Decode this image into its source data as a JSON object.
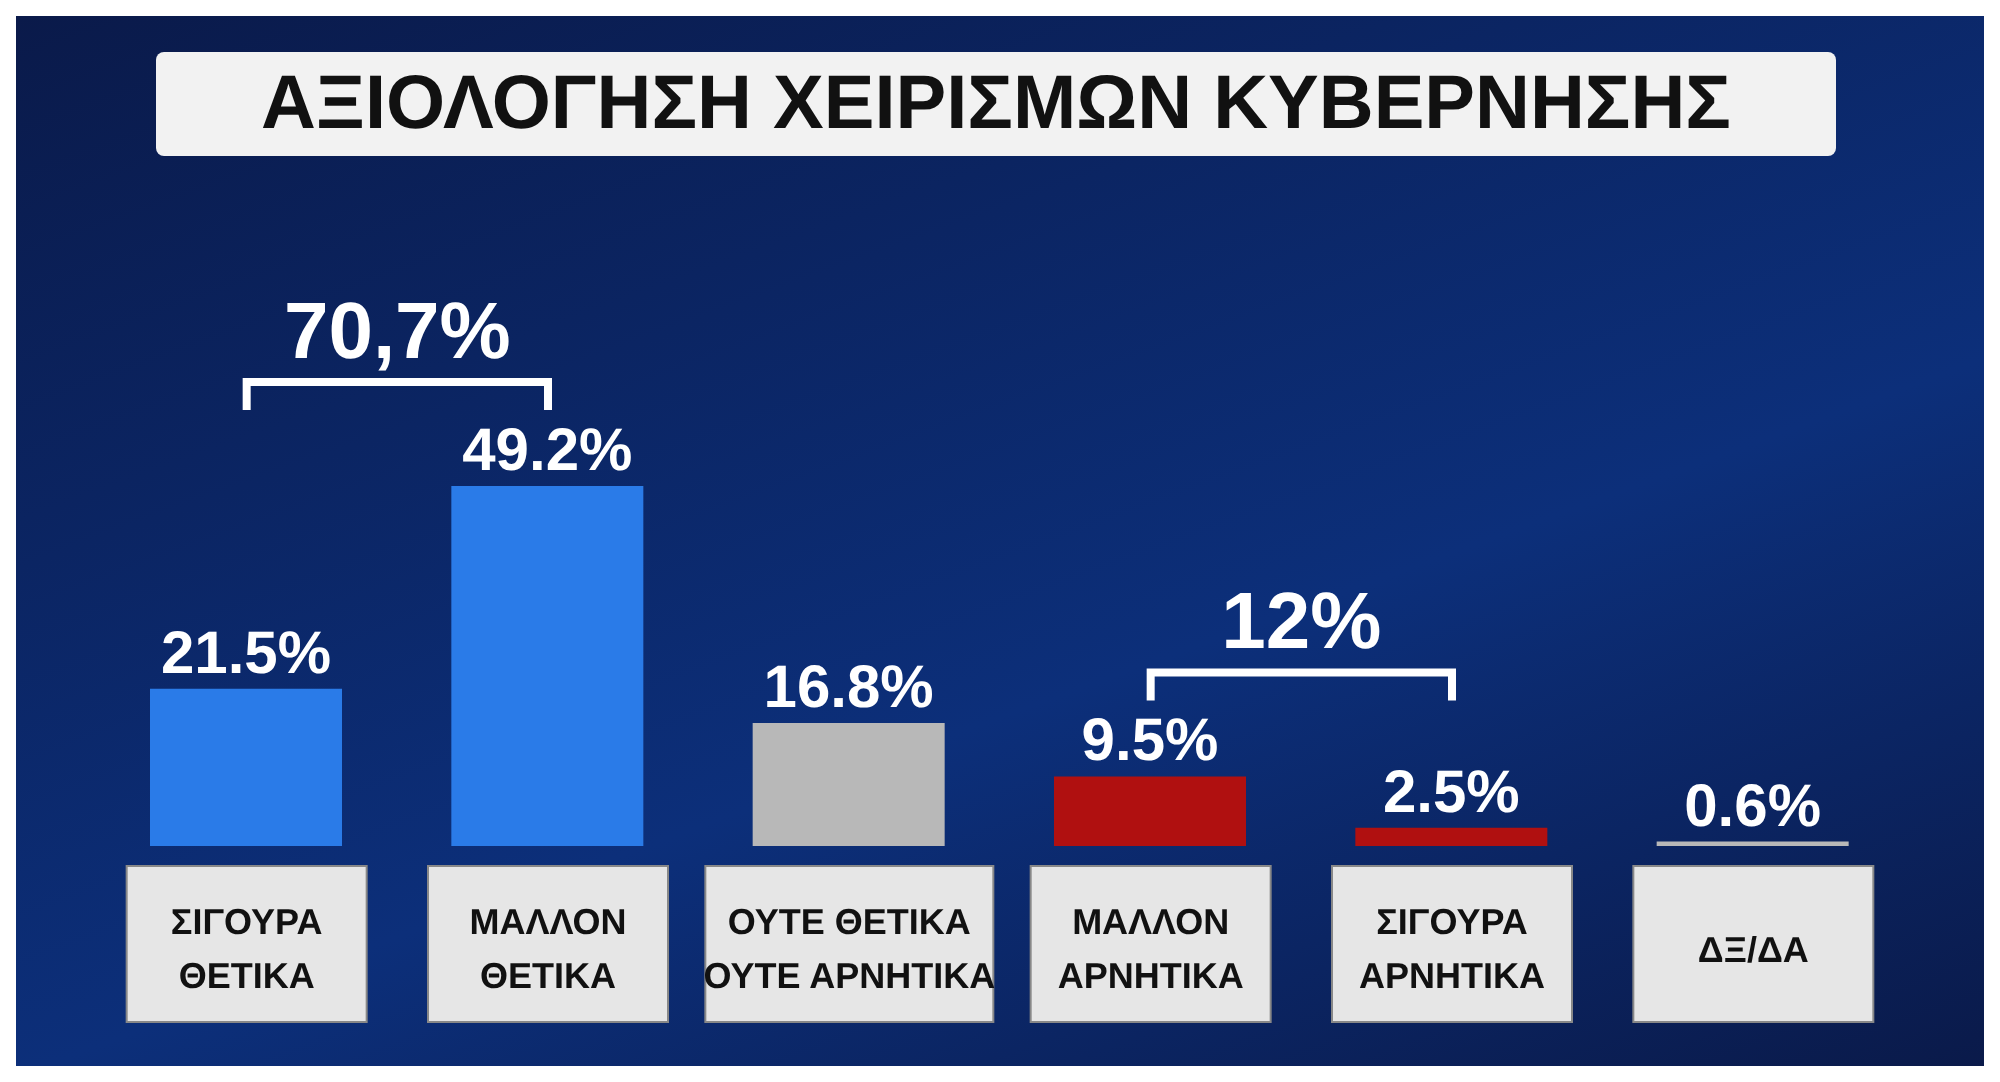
{
  "chart_data": {
    "type": "bar",
    "title": "ΑΞΙΟΛΟΓΗΣΗ ΧΕΙΡΙΣΜΩΝ ΚΥΒΕΡΝΗΣΗΣ",
    "categories": [
      "ΣΙΓΟΥΡΑ ΘΕΤΙΚΑ",
      "ΜΑΛΛΟΝ ΘΕΤΙΚΑ",
      "ΟΥΤΕ ΘΕΤΙΚΑ ΟΥΤΕ ΑΡΝΗΤΙΚΑ",
      "ΜΑΛΛΟΝ ΑΡΝΗΤΙΚΑ",
      "ΣΙΓΟΥΡΑ ΑΡΝΗΤΙΚΑ",
      "ΔΞ/ΔΑ"
    ],
    "values": [
      21.5,
      49.2,
      16.8,
      9.5,
      2.5,
      0.6
    ],
    "colors": [
      "#2a7be8",
      "#2a7be8",
      "#b8b8b8",
      "#b01010",
      "#b01010",
      "#b8b8b8"
    ],
    "value_labels": [
      "21.5%",
      "49.2%",
      "16.8%",
      "9.5%",
      "2.5%",
      "0.6%"
    ],
    "annotations": [
      "70,7%",
      "12%"
    ],
    "orientation": "vertical"
  }
}
